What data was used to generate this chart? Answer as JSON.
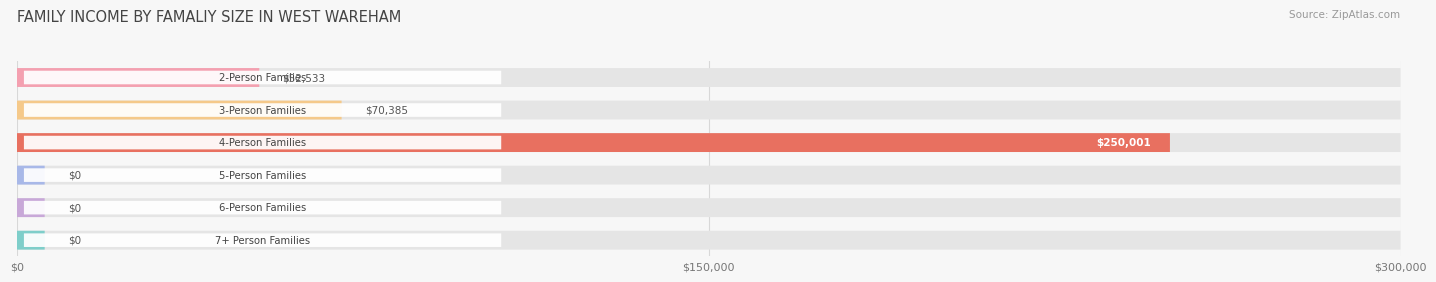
{
  "title": "FAMILY INCOME BY FAMALIY SIZE IN WEST WAREHAM",
  "source": "Source: ZipAtlas.com",
  "categories": [
    "2-Person Families",
    "3-Person Families",
    "4-Person Families",
    "5-Person Families",
    "6-Person Families",
    "7+ Person Families"
  ],
  "values": [
    52533,
    70385,
    250001,
    0,
    0,
    0
  ],
  "bar_colors": [
    "#f4a0b0",
    "#f5c98a",
    "#e87060",
    "#a8b8e8",
    "#c8a8d8",
    "#7ececa"
  ],
  "label_colors": [
    "#555555",
    "#555555",
    "#ffffff",
    "#555555",
    "#555555",
    "#555555"
  ],
  "value_labels": [
    "$52,533",
    "$70,385",
    "$250,001",
    "$0",
    "$0",
    "$0"
  ],
  "xlim": [
    0,
    300000
  ],
  "xtick_values": [
    0,
    150000,
    300000
  ],
  "xtick_labels": [
    "$0",
    "$150,000",
    "$300,000"
  ],
  "background_color": "#f7f7f7",
  "title_fontsize": 10.5,
  "bar_height": 0.58,
  "grid_color": "#d8d8d8"
}
